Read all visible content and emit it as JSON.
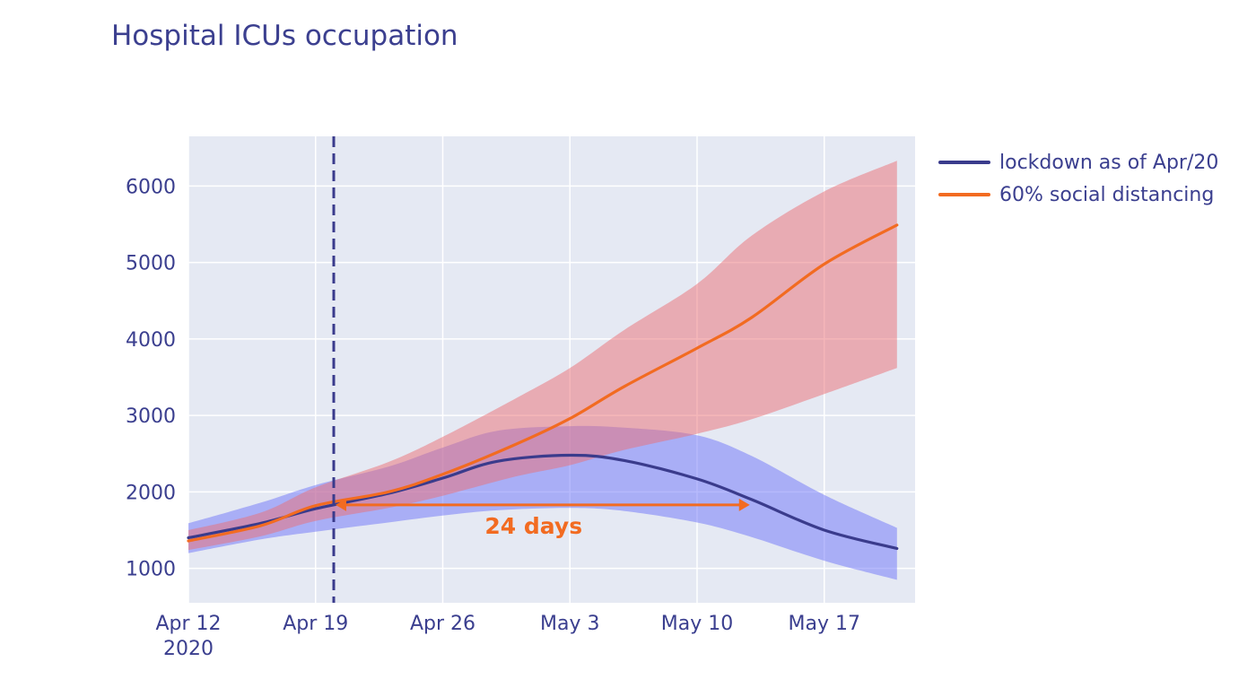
{
  "chart_data": {
    "type": "line",
    "title": "Hospital ICUs occupation",
    "xlabel": "",
    "ylabel": "",
    "x_range": [
      "2020-04-12",
      "2020-05-22"
    ],
    "ylim": [
      550,
      6650
    ],
    "y_ticks": [
      1000,
      2000,
      3000,
      4000,
      5000,
      6000
    ],
    "x_ticks": [
      {
        "date": "2020-04-12",
        "label": "Apr 12",
        "sublabel": "2020"
      },
      {
        "date": "2020-04-19",
        "label": "Apr 19",
        "sublabel": ""
      },
      {
        "date": "2020-04-26",
        "label": "Apr 26",
        "sublabel": ""
      },
      {
        "date": "2020-05-03",
        "label": "May 3",
        "sublabel": ""
      },
      {
        "date": "2020-05-10",
        "label": "May 10",
        "sublabel": ""
      },
      {
        "date": "2020-05-17",
        "label": "May 17",
        "sublabel": ""
      }
    ],
    "grid": true,
    "plot_background": "#e5e9f3",
    "legend_position": "right",
    "series": [
      {
        "name": "lockdown as of Apr/20",
        "color": "#3a3b8c",
        "band_color": "rgba(110,115,250,0.5)",
        "points": [
          {
            "x": "2020-04-12",
            "y": 1400,
            "low": 1200,
            "high": 1590
          },
          {
            "x": "2020-04-16",
            "y": 1590,
            "low": 1380,
            "high": 1860
          },
          {
            "x": "2020-04-19",
            "y": 1780,
            "low": 1480,
            "high": 2090
          },
          {
            "x": "2020-04-23",
            "y": 1980,
            "low": 1600,
            "high": 2330
          },
          {
            "x": "2020-04-26",
            "y": 2180,
            "low": 1690,
            "high": 2580
          },
          {
            "x": "2020-04-29",
            "y": 2400,
            "low": 1760,
            "high": 2800
          },
          {
            "x": "2020-05-03",
            "y": 2480,
            "low": 1790,
            "high": 2860
          },
          {
            "x": "2020-05-06",
            "y": 2410,
            "low": 1750,
            "high": 2840
          },
          {
            "x": "2020-05-10",
            "y": 2170,
            "low": 1600,
            "high": 2740
          },
          {
            "x": "2020-05-13",
            "y": 1900,
            "low": 1410,
            "high": 2470
          },
          {
            "x": "2020-05-17",
            "y": 1500,
            "low": 1100,
            "high": 1960
          },
          {
            "x": "2020-05-21",
            "y": 1260,
            "low": 850,
            "high": 1530
          }
        ]
      },
      {
        "name": "60% social distancing",
        "color": "#f26b21",
        "band_color": "rgba(235,110,115,0.5)",
        "points": [
          {
            "x": "2020-04-12",
            "y": 1360,
            "low": 1240,
            "high": 1500
          },
          {
            "x": "2020-04-16",
            "y": 1560,
            "low": 1420,
            "high": 1730
          },
          {
            "x": "2020-04-19",
            "y": 1820,
            "low": 1620,
            "high": 2060
          },
          {
            "x": "2020-04-23",
            "y": 2000,
            "low": 1790,
            "high": 2390
          },
          {
            "x": "2020-04-26",
            "y": 2230,
            "low": 1950,
            "high": 2720
          },
          {
            "x": "2020-04-30",
            "y": 2620,
            "low": 2200,
            "high": 3220
          },
          {
            "x": "2020-05-03",
            "y": 2960,
            "low": 2350,
            "high": 3620
          },
          {
            "x": "2020-05-06",
            "y": 3380,
            "low": 2550,
            "high": 4120
          },
          {
            "x": "2020-05-10",
            "y": 3880,
            "low": 2760,
            "high": 4720
          },
          {
            "x": "2020-05-13",
            "y": 4280,
            "low": 2950,
            "high": 5350
          },
          {
            "x": "2020-05-17",
            "y": 4980,
            "low": 3280,
            "high": 5930
          },
          {
            "x": "2020-05-21",
            "y": 5490,
            "low": 3620,
            "high": 6330
          }
        ]
      }
    ],
    "vline": {
      "x": "2020-04-20",
      "color": "#3a3b8c",
      "style": "dashed"
    },
    "annotation": {
      "text": "24 days",
      "color": "#f26b21",
      "arrow_from": {
        "x": "2020-04-20",
        "y": 1830
      },
      "arrow_to": {
        "x": "2020-05-13",
        "y": 1830
      },
      "text_at": {
        "x": "2020-05-01",
        "y": 1550
      }
    }
  }
}
